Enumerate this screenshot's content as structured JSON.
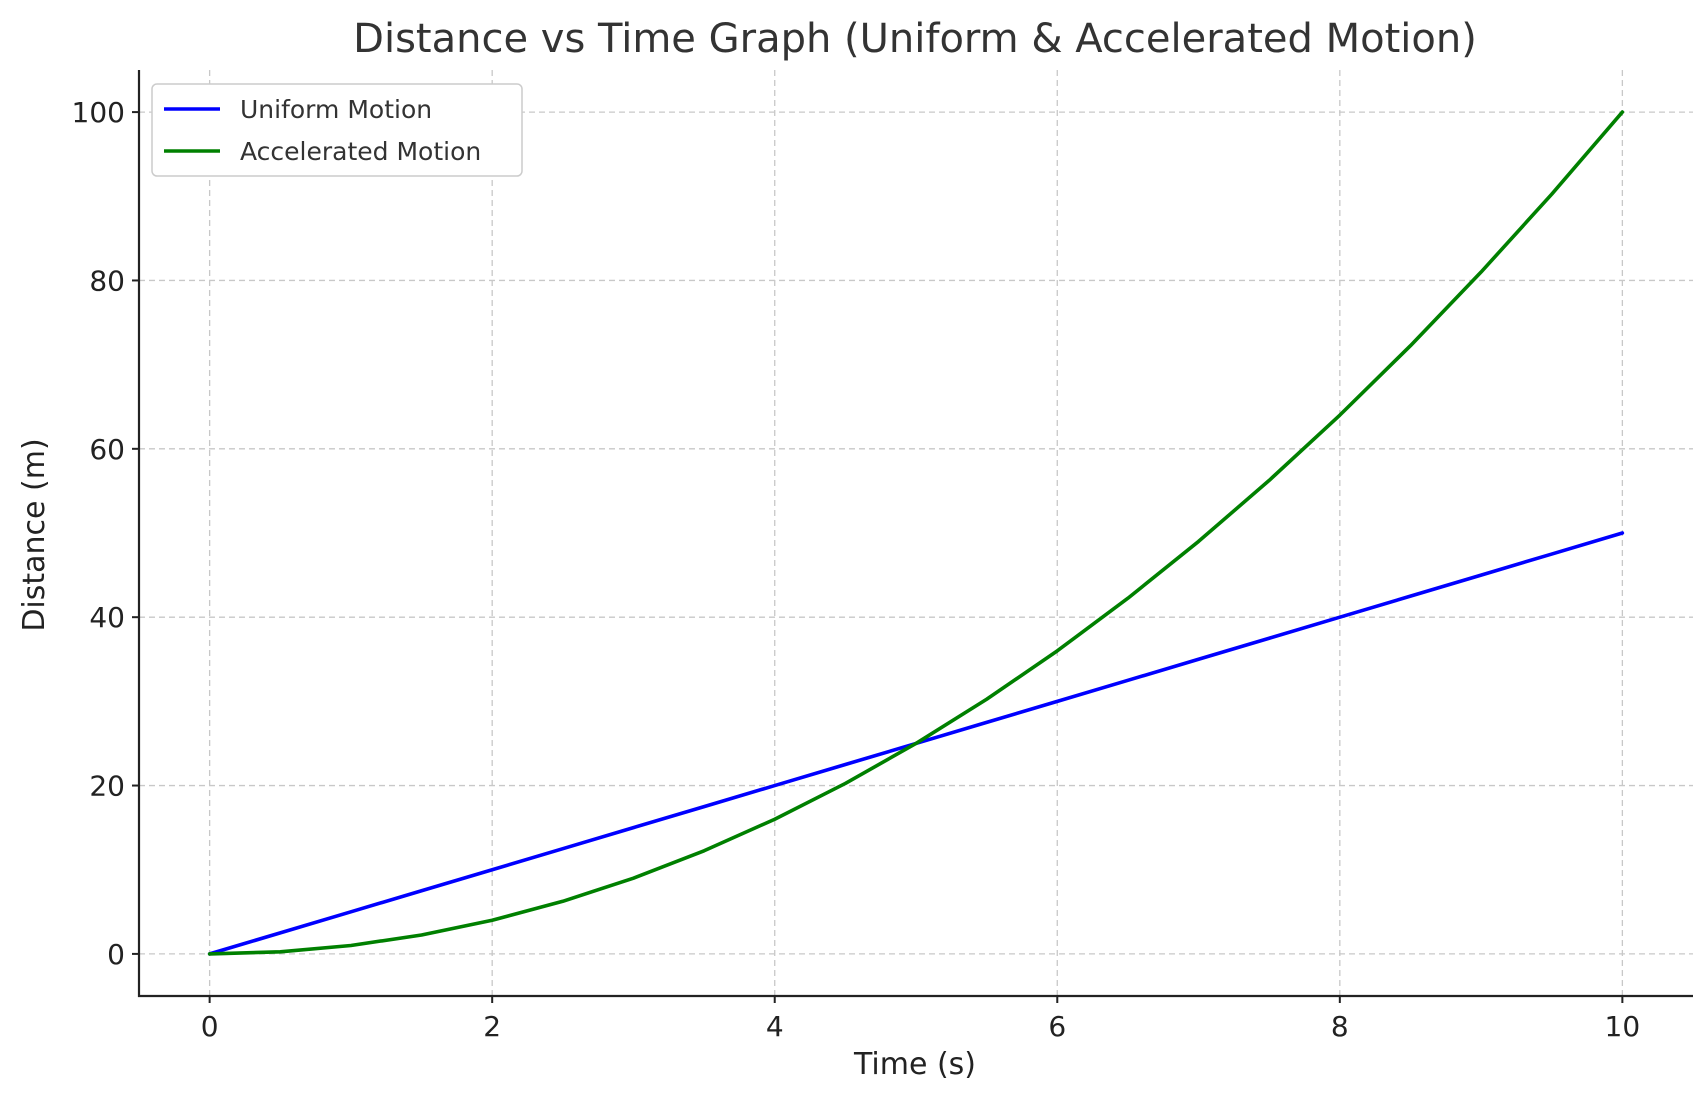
{
  "chart_data": {
    "type": "line",
    "title": "Distance vs Time Graph (Uniform & Accelerated Motion)",
    "xlabel": "Time (s)",
    "ylabel": "Distance (m)",
    "xlim": [
      -0.5,
      10.5
    ],
    "ylim": [
      -5,
      105
    ],
    "x_ticks": [
      0,
      2,
      4,
      6,
      8,
      10
    ],
    "y_ticks": [
      0,
      20,
      40,
      60,
      80,
      100
    ],
    "grid": true,
    "legend_position": "top-left",
    "x": [
      0,
      0.5,
      1,
      1.5,
      2,
      2.5,
      3,
      3.5,
      4,
      4.5,
      5,
      5.5,
      6,
      6.5,
      7,
      7.5,
      8,
      8.5,
      9,
      9.5,
      10
    ],
    "series": [
      {
        "name": "Uniform Motion",
        "color": "#0000ff",
        "values": [
          0,
          2.5,
          5,
          7.5,
          10,
          12.5,
          15,
          17.5,
          20,
          22.5,
          25,
          27.5,
          30,
          32.5,
          35,
          37.5,
          40,
          42.5,
          45,
          47.5,
          50
        ]
      },
      {
        "name": "Accelerated Motion",
        "color": "#008000",
        "values": [
          0,
          0.25,
          1,
          2.25,
          4,
          6.25,
          9,
          12.25,
          16,
          20.25,
          25,
          30.25,
          36,
          42.25,
          49,
          56.25,
          64,
          72.25,
          81,
          90.25,
          100
        ]
      }
    ]
  }
}
